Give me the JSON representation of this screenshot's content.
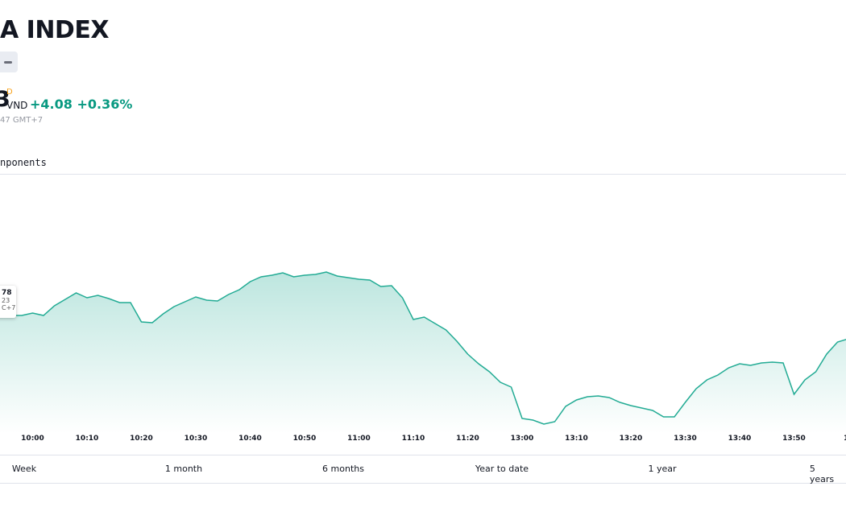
{
  "header": {
    "title": "A INDEX",
    "price": "3",
    "price_flag": "D",
    "currency": "VND",
    "change": "+4.08",
    "change_percent": "+0.36%",
    "time_note": "47 GMT+7",
    "tab": "nponents"
  },
  "tooltip": {
    "value": "78",
    "date": "23",
    "zone": "C+7"
  },
  "chart_data": {
    "type": "area",
    "color": "#22ab94",
    "categories": [
      null,
      null,
      null,
      "10:00",
      null,
      null,
      null,
      null,
      "10:10",
      null,
      null,
      null,
      null,
      "10:20",
      null,
      null,
      null,
      null,
      "10:30",
      null,
      null,
      null,
      null,
      "10:40",
      null,
      null,
      null,
      null,
      "10:50",
      null,
      null,
      null,
      null,
      "11:00",
      null,
      null,
      null,
      null,
      "11:10",
      null,
      null,
      null,
      null,
      "11:20",
      null,
      null,
      null,
      null,
      "13:00",
      null,
      null,
      null,
      null,
      "13:10",
      null,
      null,
      null,
      null,
      "13:20",
      null,
      null,
      null,
      null,
      "13:30",
      null,
      null,
      null,
      null,
      "13:40",
      null,
      null,
      null,
      null,
      "13:50",
      null,
      null,
      null,
      null,
      "1"
    ],
    "series": [
      {
        "values": [
          150,
          148,
          148,
          151,
          148,
          160,
          168,
          176,
          170,
          173,
          169,
          164,
          164,
          140,
          139,
          150,
          159,
          165,
          171,
          167,
          166,
          174,
          180,
          190,
          196,
          198,
          201,
          196,
          198,
          199,
          202,
          197,
          195,
          193,
          192,
          184,
          185,
          170,
          143,
          146,
          138,
          130,
          116,
          100,
          88,
          78,
          65,
          59,
          20,
          18,
          13,
          16,
          35,
          43,
          47,
          48,
          46,
          40,
          36,
          33,
          30,
          22,
          22,
          40,
          57,
          68,
          74,
          83,
          88,
          86,
          89,
          90,
          89,
          50,
          68,
          78,
          100,
          115,
          119
        ]
      }
    ],
    "ylim": [
      0,
      300
    ]
  },
  "ranges": [
    "Week",
    "1 month",
    "6 months",
    "Year to date",
    "1 year",
    "5 years"
  ]
}
